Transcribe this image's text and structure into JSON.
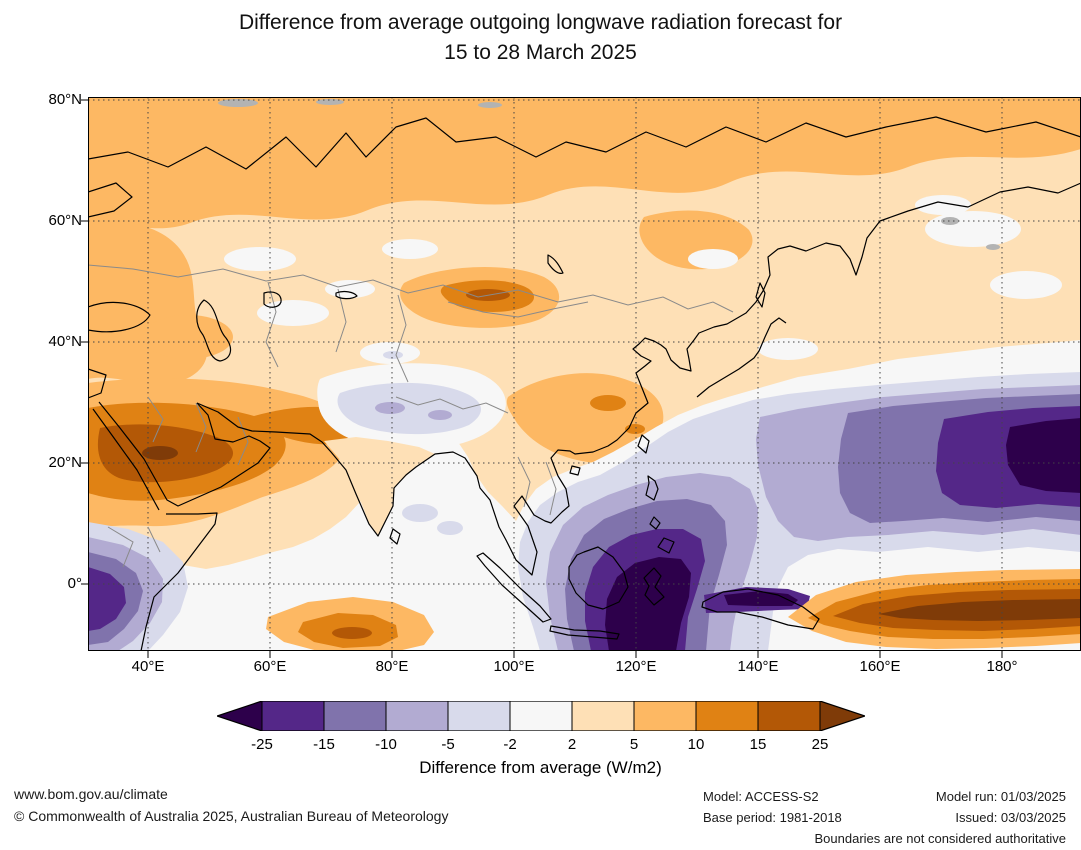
{
  "title": {
    "line1": "Difference from average outgoing longwave radiation forecast for",
    "line2": "15 to 28 March 2025"
  },
  "axes": {
    "x_labels": [
      "40°E",
      "60°E",
      "80°E",
      "100°E",
      "120°E",
      "140°E",
      "160°E",
      "180°"
    ],
    "y_labels": [
      "80°N",
      "60°N",
      "40°N",
      "20°N",
      "0°"
    ]
  },
  "colorbar": {
    "caption": "Difference from average (W/m2)",
    "tick_labels": [
      "-25",
      "-15",
      "-10",
      "-5",
      "-2",
      "2",
      "5",
      "10",
      "15",
      "25"
    ],
    "segment_colors": [
      "#542788",
      "#8073ac",
      "#b2abd2",
      "#d8daeb",
      "#f7f7f7",
      "#fee0b6",
      "#fdb863",
      "#e08214",
      "#b35806"
    ],
    "left_arrow_color": "#2d004b",
    "right_arrow_color": "#7f3b08"
  },
  "footer": {
    "website": "www.bom.gov.au/climate",
    "copyright": "© Commonwealth of Australia 2025, Australian Bureau of Meteorology",
    "model_label": "Model: ACCESS-S2",
    "base_period": "Base period: 1981-2018",
    "model_run": "Model run: 01/03/2025",
    "issued": "Issued: 03/03/2025",
    "boundaries_note": "Boundaries are not considered authoritative"
  },
  "chart_data": {
    "type": "heatmap",
    "map_type": "filled contour anomaly map (outgoing longwave radiation difference from average)",
    "region": "Asia, Indian Ocean and western Pacific",
    "lon_range_deg_east": [
      30,
      193
    ],
    "lat_range_deg_north": [
      -11,
      80
    ],
    "x_ticks": [
      "40°E",
      "60°E",
      "80°E",
      "100°E",
      "120°E",
      "140°E",
      "160°E",
      "180°"
    ],
    "y_ticks": [
      "80°N",
      "60°N",
      "40°N",
      "20°N",
      "0°"
    ],
    "units": "W/m2",
    "contour_levels": [
      -25,
      -15,
      -10,
      -5,
      -2,
      2,
      5,
      10,
      15,
      25
    ],
    "palette": [
      "#2d004b",
      "#542788",
      "#8073ac",
      "#b2abd2",
      "#d8daeb",
      "#f7f7f7",
      "#fee0b6",
      "#fdb863",
      "#e08214",
      "#b35806",
      "#7f3b08"
    ],
    "notable_features": [
      "Positive anomalies (+2 to +15 W/m2) across most of the Asian continent and high latitudes",
      "Strong positive anomalies (+15 to +25 W/m2) over the Arabian Peninsula and Middle East",
      "Very strong positive anomaly band (above +25 W/m2) along the equatorial Pacific east of New Guinea",
      "Very strong negative anomalies (below -25 W/m2) over the Maritime Continent, Philippines and tropical western Pacific",
      "Weak negative anomalies over the Tibetan Plateau, Bay of Bengal and east African coast"
    ]
  }
}
